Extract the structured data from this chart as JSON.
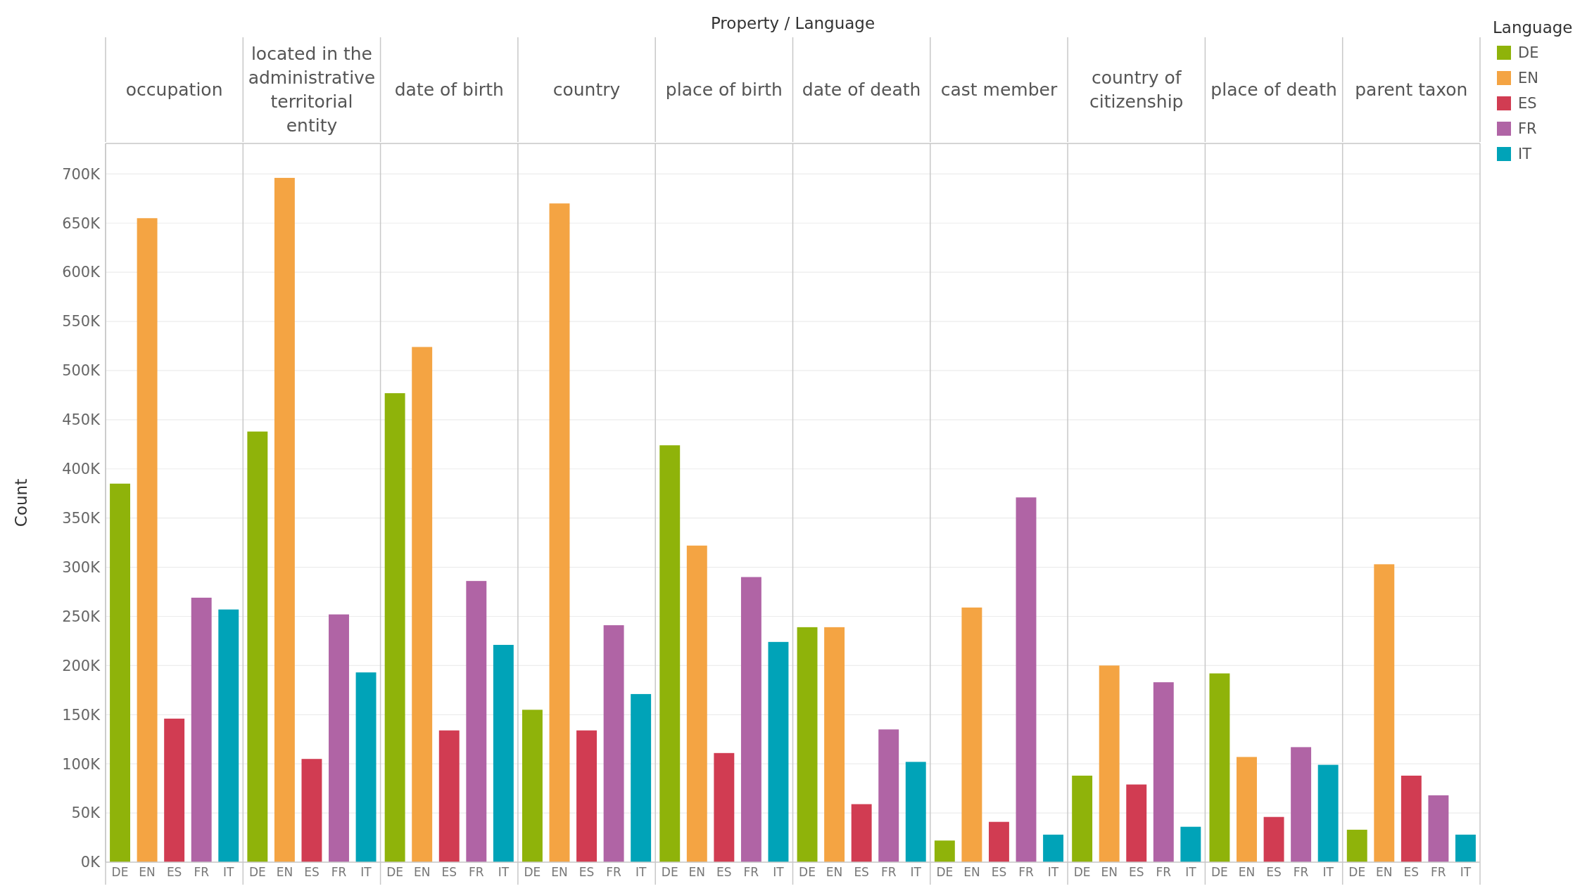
{
  "chart_data": [
    {
      "type": "bar",
      "title": "occupation",
      "ylabel": "Count",
      "annotations": [
        "Property / Language"
      ],
      "categories": [
        "DE",
        "EN",
        "ES",
        "FR",
        "IT"
      ],
      "values": [
        385000,
        655000,
        146000,
        269000,
        257000
      ],
      "colors": [
        "#8fb30a",
        "#f4a443",
        "#d13c52",
        "#b064a5",
        "#00a3b8"
      ],
      "ylim": [
        0,
        731000
      ],
      "yticks": [
        {
          "value": 0,
          "label": "0K"
        },
        {
          "value": 50000,
          "label": "50K"
        },
        {
          "value": 100000,
          "label": "100K"
        },
        {
          "value": 150000,
          "label": "150K"
        },
        {
          "value": 200000,
          "label": "200K"
        },
        {
          "value": 250000,
          "label": "250K"
        },
        {
          "value": 300000,
          "label": "300K"
        },
        {
          "value": 350000,
          "label": "350K"
        },
        {
          "value": 400000,
          "label": "400K"
        },
        {
          "value": 450000,
          "label": "450K"
        },
        {
          "value": 500000,
          "label": "500K"
        },
        {
          "value": 550000,
          "label": "550K"
        },
        {
          "value": 600000,
          "label": "600K"
        },
        {
          "value": 650000,
          "label": "650K"
        },
        {
          "value": 700000,
          "label": "700K"
        }
      ],
      "grid": "y"
    },
    {
      "type": "bar",
      "title": "located in the administrative territorial entity",
      "categories": [
        "DE",
        "EN",
        "ES",
        "FR",
        "IT"
      ],
      "values": [
        438000,
        696000,
        105000,
        252000,
        193000
      ],
      "colors": [
        "#8fb30a",
        "#f4a443",
        "#d13c52",
        "#b064a5",
        "#00a3b8"
      ],
      "ylim": [
        0,
        731000
      ],
      "grid": "y",
      "tick_labels": "x"
    },
    {
      "type": "bar",
      "title": "date of birth",
      "categories": [
        "DE",
        "EN",
        "ES",
        "FR",
        "IT"
      ],
      "values": [
        477000,
        524000,
        134000,
        286000,
        221000
      ],
      "colors": [
        "#8fb30a",
        "#f4a443",
        "#d13c52",
        "#b064a5",
        "#00a3b8"
      ],
      "ylim": [
        0,
        731000
      ],
      "grid": "y",
      "tick_labels": "x"
    },
    {
      "type": "bar",
      "title": "country",
      "categories": [
        "DE",
        "EN",
        "ES",
        "FR",
        "IT"
      ],
      "values": [
        155000,
        670000,
        134000,
        241000,
        171000
      ],
      "colors": [
        "#8fb30a",
        "#f4a443",
        "#d13c52",
        "#b064a5",
        "#00a3b8"
      ],
      "ylim": [
        0,
        731000
      ],
      "grid": "y",
      "tick_labels": "x"
    },
    {
      "type": "bar",
      "title": "place of birth",
      "categories": [
        "DE",
        "EN",
        "ES",
        "FR",
        "IT"
      ],
      "values": [
        424000,
        322000,
        111000,
        290000,
        224000
      ],
      "colors": [
        "#8fb30a",
        "#f4a443",
        "#d13c52",
        "#b064a5",
        "#00a3b8"
      ],
      "ylim": [
        0,
        731000
      ],
      "grid": "y",
      "tick_labels": "x"
    },
    {
      "type": "bar",
      "title": "date of death",
      "categories": [
        "DE",
        "EN",
        "ES",
        "FR",
        "IT"
      ],
      "values": [
        239000,
        239000,
        59000,
        135000,
        102000
      ],
      "colors": [
        "#8fb30a",
        "#f4a443",
        "#d13c52",
        "#b064a5",
        "#00a3b8"
      ],
      "ylim": [
        0,
        731000
      ],
      "grid": "y",
      "tick_labels": "x"
    },
    {
      "type": "bar",
      "title": "cast member",
      "categories": [
        "DE",
        "EN",
        "ES",
        "FR",
        "IT"
      ],
      "values": [
        22000,
        259000,
        41000,
        371000,
        28000
      ],
      "colors": [
        "#8fb30a",
        "#f4a443",
        "#d13c52",
        "#b064a5",
        "#00a3b8"
      ],
      "ylim": [
        0,
        731000
      ],
      "grid": "y",
      "tick_labels": "x"
    },
    {
      "type": "bar",
      "title": "country of citizenship",
      "categories": [
        "DE",
        "EN",
        "ES",
        "FR",
        "IT"
      ],
      "values": [
        88000,
        200000,
        79000,
        183000,
        36000
      ],
      "colors": [
        "#8fb30a",
        "#f4a443",
        "#d13c52",
        "#b064a5",
        "#00a3b8"
      ],
      "ylim": [
        0,
        731000
      ],
      "grid": "y",
      "tick_labels": "x"
    },
    {
      "type": "bar",
      "title": "place of death",
      "categories": [
        "DE",
        "EN",
        "ES",
        "FR",
        "IT"
      ],
      "values": [
        192000,
        107000,
        46000,
        117000,
        99000
      ],
      "colors": [
        "#8fb30a",
        "#f4a443",
        "#d13c52",
        "#b064a5",
        "#00a3b8"
      ],
      "ylim": [
        0,
        731000
      ],
      "grid": "y",
      "tick_labels": "x"
    },
    {
      "type": "bar",
      "title": "parent taxon",
      "categories": [
        "DE",
        "EN",
        "ES",
        "FR",
        "IT"
      ],
      "values": [
        33000,
        303000,
        88000,
        68000,
        28000
      ],
      "colors": [
        "#8fb30a",
        "#f4a443",
        "#d13c52",
        "#b064a5",
        "#00a3b8"
      ],
      "ylim": [
        0,
        731000
      ],
      "grid": "y",
      "tick_labels": "x",
      "legend_title": "Language"
    }
  ]
}
